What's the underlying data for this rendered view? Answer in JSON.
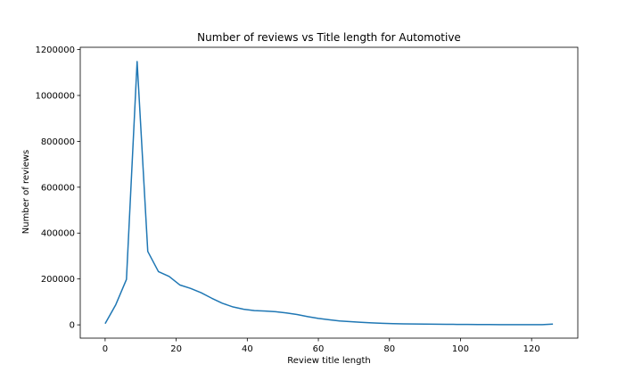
{
  "chart_data": {
    "type": "line",
    "title": "Number of reviews vs Title length for Automotive",
    "xlabel": "Review title length",
    "ylabel": "Number of reviews",
    "xlim": [
      -7,
      133
    ],
    "ylim": [
      -58000,
      1210000
    ],
    "xticks": [
      0,
      20,
      40,
      60,
      80,
      100,
      120
    ],
    "yticks": [
      0,
      200000,
      400000,
      600000,
      800000,
      1000000,
      1200000
    ],
    "grid": false,
    "series": [
      {
        "color": "#1f77b4",
        "x": [
          0,
          3,
          6,
          9,
          12,
          15,
          18,
          21,
          24,
          27,
          30,
          33,
          36,
          39,
          42,
          45,
          48,
          51,
          54,
          57,
          60,
          63,
          66,
          69,
          72,
          75,
          78,
          81,
          84,
          87,
          90,
          93,
          96,
          99,
          102,
          105,
          108,
          111,
          114,
          117,
          120,
          123,
          126
        ],
        "y": [
          5000,
          88000,
          198000,
          1148000,
          320000,
          232000,
          211000,
          174000,
          159000,
          140000,
          116000,
          94000,
          78000,
          68000,
          62000,
          60000,
          57000,
          52000,
          45000,
          36000,
          28000,
          22000,
          17000,
          14000,
          11000,
          8500,
          6500,
          5000,
          4200,
          3800,
          3200,
          2800,
          2300,
          2000,
          1700,
          1400,
          1200,
          1000,
          800,
          700,
          600,
          600,
          3500
        ]
      }
    ]
  }
}
